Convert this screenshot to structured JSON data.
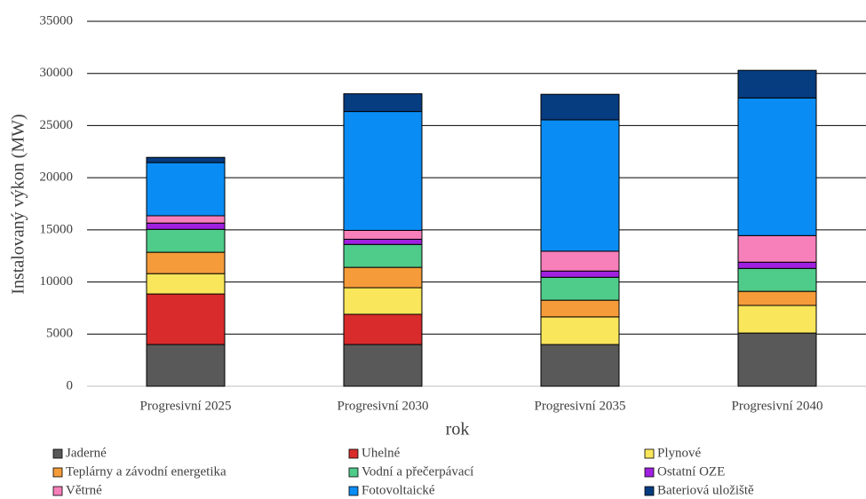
{
  "chart_data": {
    "type": "stacked_bar",
    "y_axis_label": "Instalovaný výkon (MW)",
    "x_axis_label": "rok",
    "categories": [
      "Progresivní 2025",
      "Progresivní 2030",
      "Progresivní 2035",
      "Progresivní 2040"
    ],
    "series": [
      {
        "name": "Jaderné",
        "color": "#595959",
        "values": [
          4000,
          4000,
          4000,
          5100
        ]
      },
      {
        "name": "Uhelné",
        "color": "#d92b2b",
        "values": [
          4850,
          2900,
          0,
          0
        ]
      },
      {
        "name": "Plynové",
        "color": "#f9e65a",
        "values": [
          1950,
          2550,
          2650,
          2650
        ]
      },
      {
        "name": "Teplárny a závodní energetika",
        "color": "#f59b3a",
        "values": [
          2050,
          1950,
          1600,
          1350
        ]
      },
      {
        "name": "Vodní a přečerpávací",
        "color": "#4fcb8a",
        "values": [
          2200,
          2200,
          2200,
          2200
        ]
      },
      {
        "name": "Ostatní OZE",
        "color": "#a020e0",
        "values": [
          600,
          500,
          600,
          600
        ]
      },
      {
        "name": "Větrné",
        "color": "#f77fba",
        "values": [
          700,
          850,
          1900,
          2550
        ]
      },
      {
        "name": "Fotovoltaické",
        "color": "#0a8cf5",
        "values": [
          5100,
          11400,
          12600,
          13200
        ]
      },
      {
        "name": "Bateriová uložiště",
        "color": "#063c80",
        "values": [
          500,
          1700,
          2450,
          2650
        ]
      }
    ],
    "ylim": [
      0,
      35000
    ],
    "yticks": [
      0,
      5000,
      10000,
      15000,
      20000,
      25000,
      30000,
      35000
    ],
    "grid": true
  }
}
